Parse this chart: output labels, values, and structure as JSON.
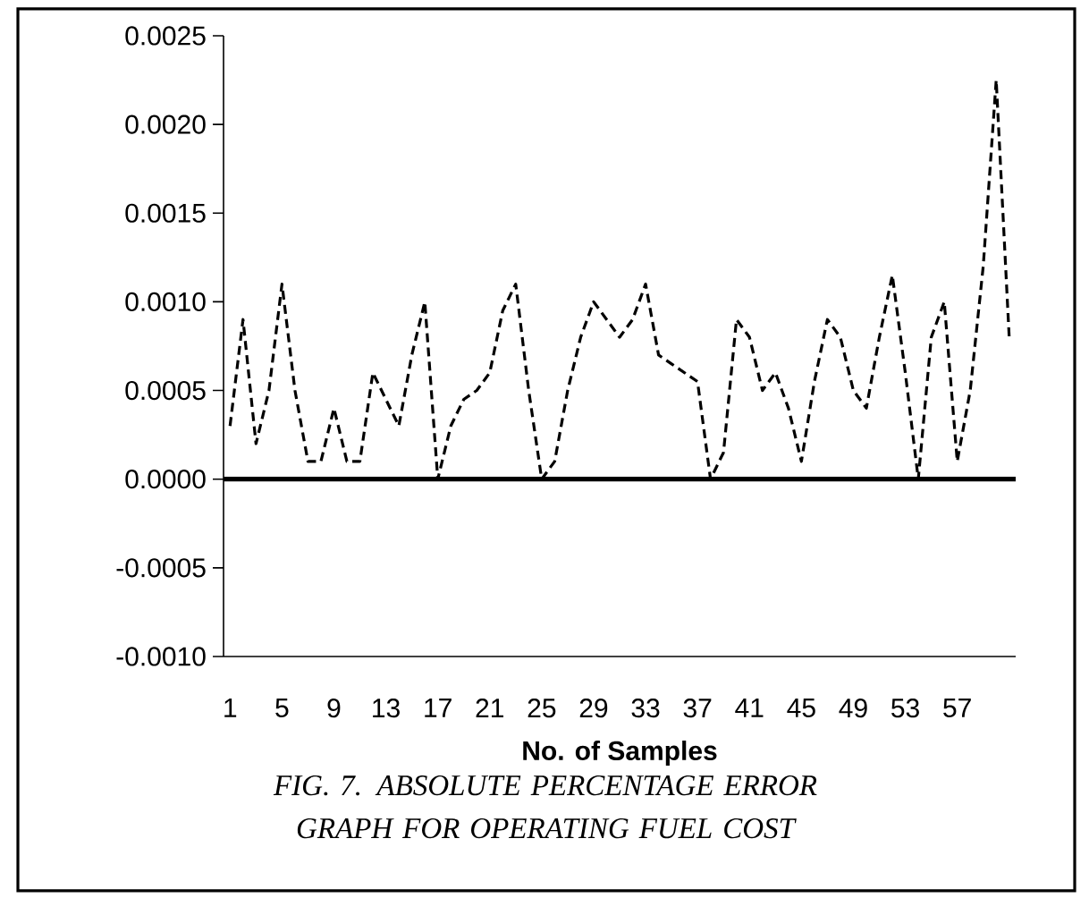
{
  "chart_data": {
    "type": "line",
    "xlabel": "No. of Samples",
    "annotations": [
      "FIG. 7. ABSOLUTE PERCENTAGE ERROR GRAPH FOR OPERATING FUEL COST"
    ],
    "categories": [
      "1",
      null,
      null,
      null,
      "5",
      null,
      null,
      null,
      "9",
      null,
      null,
      null,
      "13",
      null,
      null,
      null,
      "17",
      null,
      null,
      null,
      "21",
      null,
      null,
      null,
      "25",
      null,
      null,
      null,
      "29",
      null,
      null,
      null,
      "33",
      null,
      null,
      null,
      "37",
      null,
      null,
      null,
      "41",
      null,
      null,
      null,
      "45",
      null,
      null,
      null,
      "49",
      null,
      null,
      null,
      "53",
      null,
      null,
      null,
      "57",
      null,
      null,
      null,
      null
    ],
    "series": [
      {
        "color": "#000000",
        "values": [
          0.0003,
          0.0009,
          0.0002,
          0.0005,
          0.0011,
          0.0005,
          0.0001,
          0.0001,
          0.0004,
          0.0001,
          0.0001,
          0.0006,
          0.00045,
          0.0003,
          0.0007,
          0.001,
          0.0,
          0.0003,
          0.00045,
          0.0005,
          0.0006,
          0.00095,
          0.0011,
          0.0005,
          0.0,
          0.0001,
          0.0005,
          0.0008,
          0.001,
          0.0009,
          0.0008,
          0.0009,
          0.0011,
          0.0007,
          0.00065,
          0.0006,
          0.00055,
          0.0,
          0.00015,
          0.0009,
          0.0008,
          0.0005,
          0.0006,
          0.0004,
          0.0001,
          0.00055,
          0.0009,
          0.0008,
          0.0005,
          0.0004,
          0.0008,
          0.00115,
          0.0006,
          0.0,
          0.0008,
          0.001,
          0.0001,
          0.0005,
          0.0012,
          0.00225,
          0.0008
        ]
      }
    ],
    "ylim": [
      -0.001,
      0.0025
    ],
    "yticks": [
      {
        "value": -0.001,
        "label": "-0.0010"
      },
      {
        "value": -0.0005,
        "label": "-0.0005"
      },
      {
        "value": 0,
        "label": "0.0000"
      },
      {
        "value": 0.0005,
        "label": "0.0005"
      },
      {
        "value": 0.001,
        "label": "0.0010"
      },
      {
        "value": 0.0015,
        "label": "0.0015"
      },
      {
        "value": 0.002,
        "label": "0.0020"
      },
      {
        "value": 0.0025,
        "label": "0.0025"
      }
    ],
    "ref_lines": [
      {
        "axis": "y",
        "value": 0,
        "color": "#000000"
      }
    ],
    "line_style": "dashed",
    "marker": "none"
  }
}
